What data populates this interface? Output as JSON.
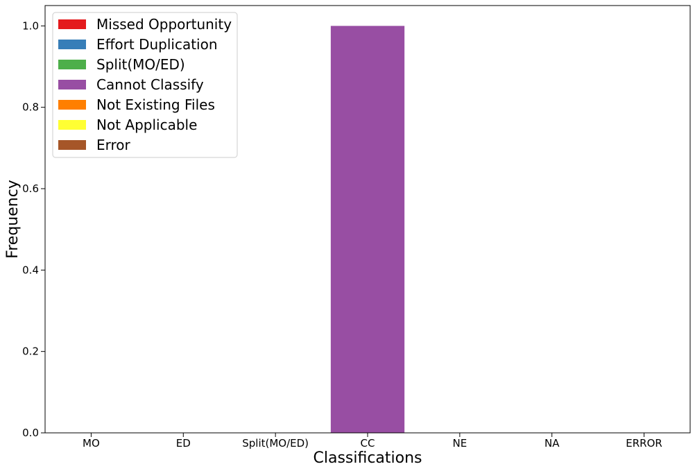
{
  "chart_data": {
    "type": "bar",
    "categories": [
      "MO",
      "ED",
      "Split(MO/ED)",
      "CC",
      "NE",
      "NA",
      "ERROR"
    ],
    "values": [
      0,
      0,
      0,
      1.0,
      0,
      0,
      0
    ],
    "bar_colors": [
      "#e41a1c",
      "#377eb8",
      "#4daf4a",
      "#984ea3",
      "#ff7f00",
      "#ffff33",
      "#a65628"
    ],
    "xlabel": "Classifications",
    "ylabel": "Frequency",
    "ylim": [
      0,
      1.05
    ],
    "yticks": [
      "0.0",
      "0.2",
      "0.4",
      "0.6",
      "0.8",
      "1.0"
    ],
    "grid": false,
    "legend": {
      "position": "upper left",
      "entries": [
        {
          "label": "Missed Opportunity",
          "color": "#e41a1c"
        },
        {
          "label": "Effort Duplication",
          "color": "#377eb8"
        },
        {
          "label": "Split(MO/ED)",
          "color": "#4daf4a"
        },
        {
          "label": "Cannot Classify",
          "color": "#984ea3"
        },
        {
          "label": "Not Existing Files",
          "color": "#ff7f00"
        },
        {
          "label": "Not Applicable",
          "color": "#ffff33"
        },
        {
          "label": "Error",
          "color": "#a65628"
        }
      ]
    }
  }
}
